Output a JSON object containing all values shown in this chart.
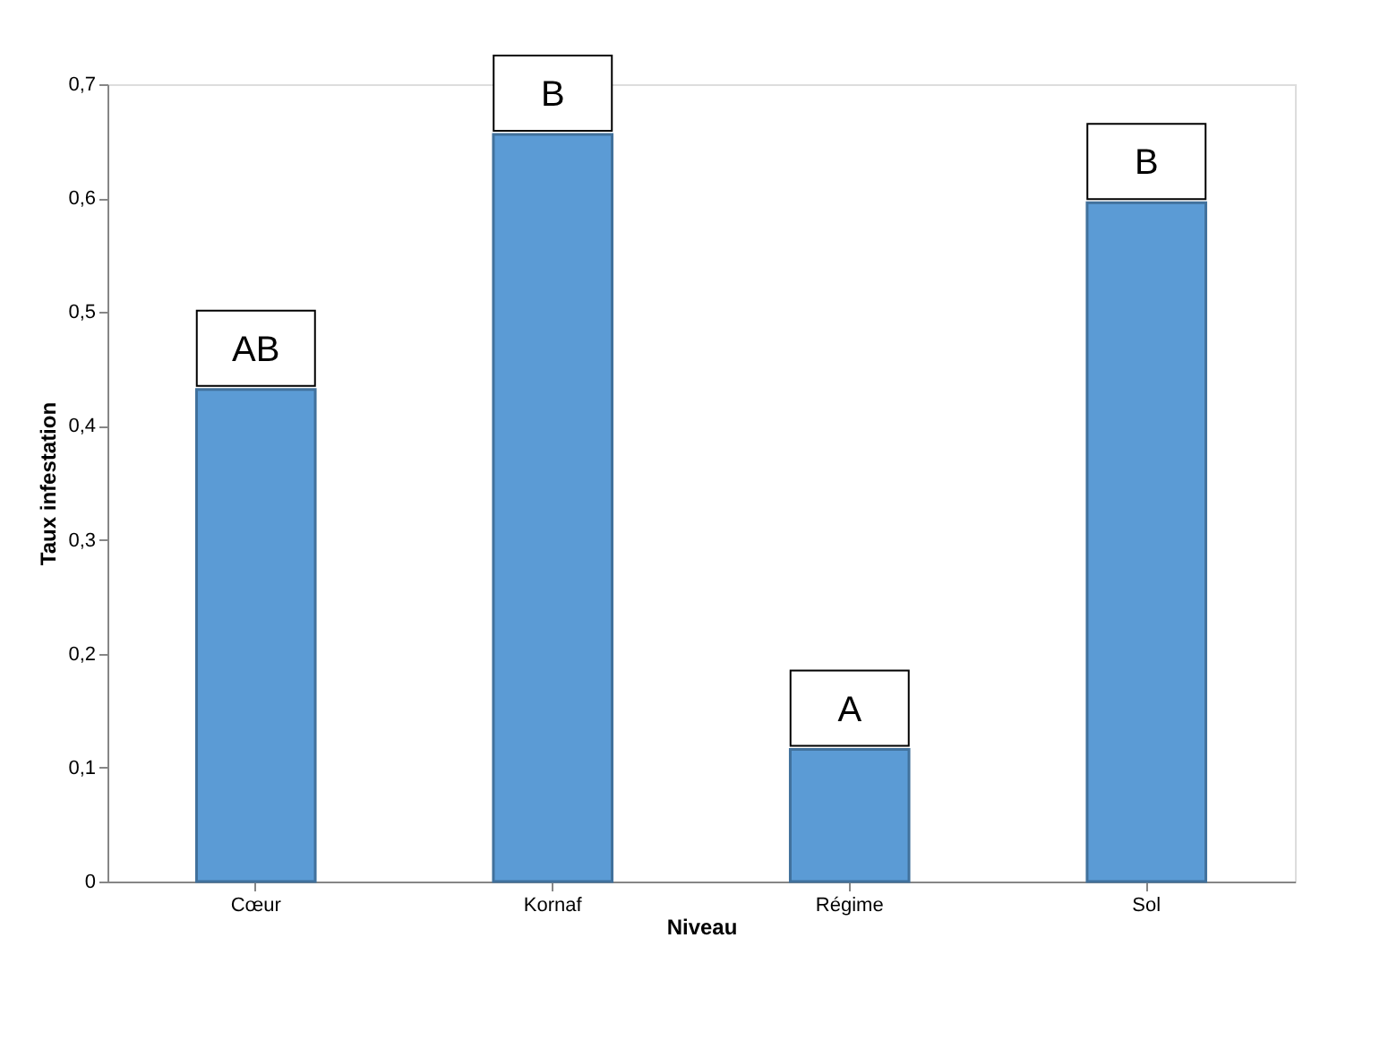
{
  "chart_data": {
    "type": "bar",
    "xlabel": "Niveau",
    "ylabel": "Taux infestation",
    "categories": [
      "Cœur",
      "Kornaf",
      "Régime",
      "Sol"
    ],
    "values": [
      0.432,
      0.656,
      0.116,
      0.596
    ],
    "color": "#5b9bd5",
    "ylim": [
      0,
      0.7
    ],
    "yticks": [
      0,
      {
        "value": 0.1,
        "label": "0,1"
      },
      {
        "value": 0.2,
        "label": "0,2"
      },
      {
        "value": 0.3,
        "label": "0,3"
      },
      {
        "value": 0.4,
        "label": "0,4"
      },
      {
        "value": 0.5,
        "label": "0,5"
      },
      {
        "value": 0.6,
        "label": "0,6"
      },
      {
        "value": 0.7,
        "label": "0,7"
      }
    ],
    "grid": false,
    "annotations": [
      {
        "text": "AB",
        "x": "Cœur",
        "y": 0.432
      },
      {
        "text": "B",
        "x": "Kornaf",
        "y": 0.656
      },
      {
        "text": "A",
        "x": "Régime",
        "y": 0.116
      },
      {
        "text": "B",
        "x": "Sol",
        "y": 0.596
      }
    ]
  }
}
